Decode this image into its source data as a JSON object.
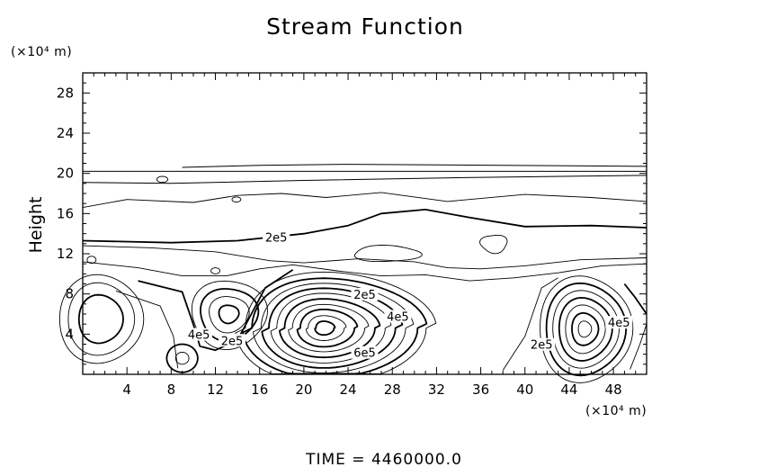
{
  "chart_data": {
    "type": "contour",
    "title": "Stream Function",
    "xlabel": "",
    "x_unit": "(×10⁴ m)",
    "ylabel": "Height",
    "y_unit": "(×10⁴ m)",
    "xlim": [
      0,
      51
    ],
    "ylim": [
      0,
      30
    ],
    "x_ticks": [
      "4",
      "8",
      "12",
      "16",
      "20",
      "24",
      "28",
      "32",
      "36",
      "40",
      "44",
      "48"
    ],
    "x_tick_values": [
      4,
      8,
      12,
      16,
      20,
      24,
      28,
      32,
      36,
      40,
      44,
      48
    ],
    "y_ticks": [
      "4",
      "8",
      "12",
      "16",
      "20",
      "24",
      "28"
    ],
    "y_tick_values": [
      4,
      8,
      12,
      16,
      20,
      24,
      28
    ],
    "contour_labels": [
      {
        "text": "2e5",
        "x": 17.5,
        "y": 13.5
      },
      {
        "text": "2e5",
        "x": 25.5,
        "y": 7.8
      },
      {
        "text": "4e5",
        "x": 28.5,
        "y": 5.6
      },
      {
        "text": "4e5",
        "x": 10.5,
        "y": 3.8
      },
      {
        "text": "2e5",
        "x": 13.5,
        "y": 3.2
      },
      {
        "text": "6e5",
        "x": 25.5,
        "y": 2.0
      },
      {
        "text": "2e5",
        "x": 41.5,
        "y": 2.8
      },
      {
        "text": "4e5",
        "x": 48.5,
        "y": 5.0
      }
    ],
    "vortex_centers": [
      {
        "x": 21.5,
        "y": 4.5,
        "peak": 600000.0
      },
      {
        "x": 45.5,
        "y": 4.5,
        "peak": 400000.0
      },
      {
        "x": 13.5,
        "y": 6,
        "peak": 400000.0
      },
      {
        "x": 2,
        "y": 5.5,
        "peak": 400000.0
      },
      {
        "x": 9,
        "y": 1.5,
        "peak": 200000.0
      }
    ],
    "grid": false
  },
  "footer": {
    "time_label": "TIME  =  4460000.0"
  }
}
